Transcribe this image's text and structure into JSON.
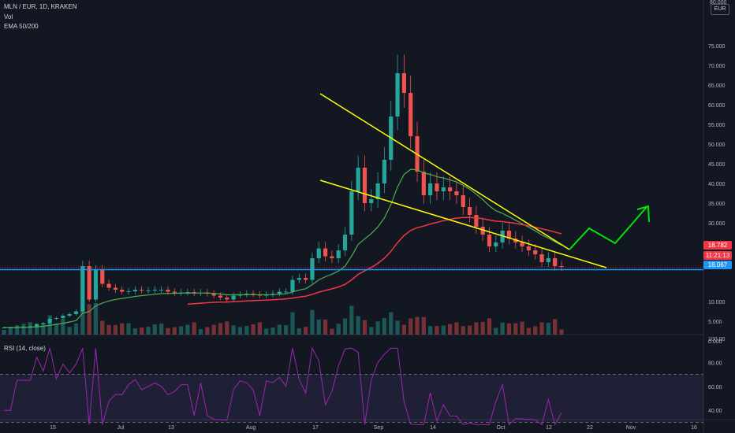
{
  "header": {
    "symbol": "MLN / EUR, 1D, KRAKEN",
    "vol": "Vol",
    "ema": "EMA 50/200",
    "currency": "EUR",
    "top_tick": "80.000"
  },
  "price_tags": {
    "last": "18.782",
    "countdown": "11:21:13",
    "ema": "18.067"
  },
  "rsi_label": "RSI (14, close)",
  "colors": {
    "background": "#131722",
    "up": "#26a69a",
    "down": "#ef5350",
    "ema50": "#4caf50",
    "ema200": "#f23645",
    "trendline": "#ffff00",
    "projection": "#00e600",
    "horizontal_line": "#2196f3",
    "rsi": "#9c27b0",
    "rsi_band": "#7e57c2"
  },
  "chart_data": {
    "type": "candlestick",
    "title": "MLN / EUR, 1D, KRAKEN",
    "price_axis": [
      "75.000",
      "70.000",
      "65.000",
      "60.000",
      "55.000",
      "50.000",
      "45.000",
      "40.000",
      "35.000",
      "30.000",
      "25.000",
      "20.000",
      "10.000",
      "5.000",
      "0.000"
    ],
    "x_ticks": [
      "15",
      "Jul",
      "13",
      "Aug",
      "17",
      "Sep",
      "14",
      "Oct",
      "12",
      "22",
      "Nov",
      "16"
    ],
    "ylim": [
      0,
      80
    ],
    "series": [
      {
        "name": "EMA 50",
        "style": "green-line"
      },
      {
        "name": "EMA 200",
        "style": "red-line"
      }
    ],
    "closes_by_segment": [
      3.4,
      3.4,
      3.5,
      3.6,
      3.7,
      4.2,
      4.5,
      5.6,
      5.8,
      6.4,
      6.8,
      7.5,
      19,
      10.5,
      18,
      14.5,
      13.5,
      13,
      12.5,
      12.6,
      13,
      12.8,
      12.8,
      13,
      13,
      12.5,
      12.2,
      12.3,
      12.4,
      12.1,
      12.3,
      12,
      11.5,
      11,
      10.5,
      11.5,
      11.8,
      12,
      11.8,
      11.5,
      11.8,
      12,
      12.5,
      12.5,
      15.5,
      16,
      15.5,
      21,
      23.5,
      21.5,
      21,
      23,
      27,
      38,
      44,
      35,
      36,
      40,
      46,
      57,
      68,
      63,
      52,
      43,
      37,
      40,
      38,
      39,
      38,
      37,
      34,
      32,
      29,
      27,
      24,
      25,
      28,
      26,
      25,
      24,
      23,
      22,
      20,
      21,
      19,
      18.8
    ],
    "rsi_axis": [
      "100.00",
      "80.00",
      "60.00",
      "40.00"
    ],
    "rsi_bands": [
      70,
      30
    ],
    "horizontal_level": 18.1,
    "last_price": 18.782
  }
}
